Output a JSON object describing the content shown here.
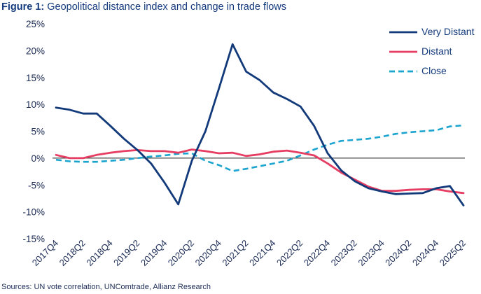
{
  "title_prefix": "Figure 1:",
  "title_text": " Geopolitical distance index and change in trade flows",
  "source": "Sources: UN vote correlation, UNComtrade, Allianz Research",
  "chart_data": {
    "type": "line",
    "title": "Figure 1: Geopolitical distance index and change in trade flows",
    "xlabel": "",
    "ylabel": "",
    "ylim": [
      -15,
      25
    ],
    "y_ticks": [
      -15,
      -10,
      -5,
      0,
      5,
      10,
      15,
      20,
      25
    ],
    "y_tick_labels": [
      "-15%",
      "-10%",
      "-5%",
      "0%",
      "5%",
      "10%",
      "15%",
      "20%",
      "25%"
    ],
    "x": [
      "2017Q4",
      "2018Q1",
      "2018Q2",
      "2018Q3",
      "2018Q4",
      "2019Q1",
      "2019Q2",
      "2019Q3",
      "2019Q4",
      "2020Q1",
      "2020Q2",
      "2020Q3",
      "2020Q4",
      "2021Q1",
      "2021Q2",
      "2021Q3",
      "2021Q4",
      "2022Q1",
      "2022Q2",
      "2022Q3",
      "2022Q4",
      "2023Q1",
      "2023Q2",
      "2023Q3",
      "2023Q4",
      "2024Q1",
      "2024Q2",
      "2024Q3",
      "2024Q4",
      "2025Q1",
      "2025Q2"
    ],
    "x_tick_labels": [
      "2017Q4",
      "2018Q2",
      "2018Q4",
      "2019Q2",
      "2019Q4",
      "2020Q2",
      "2020Q4",
      "2021Q2",
      "2021Q4",
      "2022Q2",
      "2022Q4",
      "2023Q2",
      "2023Q4",
      "2024Q2",
      "2024Q4",
      "2025Q2"
    ],
    "legend_position": "top-right",
    "series": [
      {
        "name": "Very Distant",
        "color": "#123a7a",
        "style": "solid",
        "values": [
          9.4,
          9.0,
          8.3,
          8.3,
          6.0,
          3.6,
          1.5,
          -1.0,
          -4.6,
          -8.6,
          -0.5,
          5.0,
          13.0,
          21.2,
          16.1,
          14.5,
          12.2,
          11.0,
          9.6,
          6.0,
          0.9,
          -2.3,
          -4.3,
          -5.6,
          -6.2,
          -6.7,
          -6.6,
          -6.5,
          -5.6,
          -5.2,
          -8.8
        ]
      },
      {
        "name": "Distant",
        "color": "#e63d63",
        "style": "solid",
        "values": [
          0.6,
          0.0,
          0.0,
          0.6,
          1.0,
          1.3,
          1.5,
          1.3,
          1.3,
          1.0,
          1.6,
          1.3,
          0.9,
          1.0,
          0.4,
          0.7,
          1.2,
          1.4,
          1.0,
          0.5,
          -1.0,
          -2.7,
          -4.0,
          -5.3,
          -6.1,
          -6.1,
          -5.9,
          -5.8,
          -5.8,
          -6.2,
          -6.5
        ]
      },
      {
        "name": "Close",
        "color": "#1aa4cf",
        "style": "dashed",
        "values": [
          -0.3,
          -0.6,
          -0.7,
          -0.7,
          -0.5,
          -0.3,
          0.0,
          0.3,
          0.5,
          0.8,
          0.9,
          -0.5,
          -1.3,
          -2.4,
          -2.0,
          -1.5,
          -1.0,
          -0.5,
          0.5,
          1.6,
          2.5,
          3.2,
          3.4,
          3.6,
          4.0,
          4.5,
          4.8,
          5.0,
          5.2,
          5.9,
          6.1
        ]
      }
    ]
  }
}
